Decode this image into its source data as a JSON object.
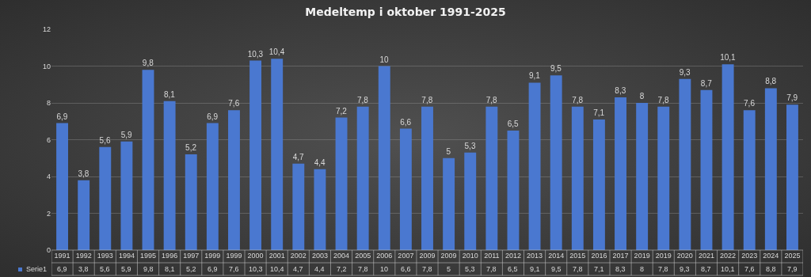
{
  "chart_data": {
    "type": "bar",
    "title": "Medeltemp i oktober 1991-2025",
    "categories": [
      "1991",
      "1992",
      "1993",
      "1994",
      "1995",
      "1996",
      "1997",
      "1999",
      "1999",
      "2000",
      "2001",
      "2002",
      "2003",
      "2004",
      "2005",
      "2006",
      "2007",
      "2009",
      "2009",
      "2010",
      "2011",
      "2012",
      "2013",
      "2014",
      "2015",
      "2016",
      "2017",
      "2019",
      "2019",
      "2020",
      "2021",
      "2022",
      "2023",
      "2024",
      "2025"
    ],
    "series": [
      {
        "name": "Serie1",
        "color": "#4a78d0",
        "values": [
          6.9,
          3.8,
          5.6,
          5.9,
          9.8,
          8.1,
          5.2,
          6.9,
          7.6,
          10.3,
          10.4,
          4.7,
          4.4,
          7.2,
          7.8,
          10,
          6.6,
          7.8,
          5,
          5.3,
          7.8,
          6.5,
          9.1,
          9.5,
          7.8,
          7.1,
          8.3,
          8,
          7.8,
          9.3,
          8.7,
          10.1,
          7.6,
          8.8,
          7.9
        ],
        "value_labels": [
          "6,9",
          "3,8",
          "5,6",
          "5,9",
          "9,8",
          "8,1",
          "5,2",
          "6,9",
          "7,6",
          "10,3",
          "10,4",
          "4,7",
          "4,4",
          "7,2",
          "7,8",
          "10",
          "6,6",
          "7,8",
          "5",
          "5,3",
          "7,8",
          "6,5",
          "9,1",
          "9,5",
          "7,8",
          "7,1",
          "8,3",
          "8",
          "7,8",
          "9,3",
          "8,7",
          "10,1",
          "7,6",
          "8,8",
          "7,9"
        ]
      }
    ],
    "ylim": [
      0,
      12
    ],
    "yticks": [
      0,
      2,
      4,
      6,
      8,
      10,
      12
    ],
    "grid": "y"
  }
}
